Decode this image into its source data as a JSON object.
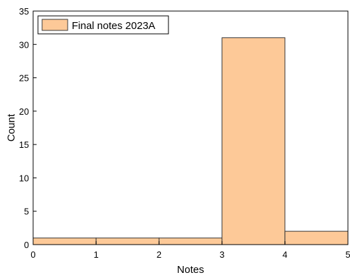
{
  "chart_data": {
    "type": "bar",
    "subtype": "histogram",
    "bins": [
      {
        "x0": 0,
        "x1": 1,
        "count": 1
      },
      {
        "x0": 1,
        "x1": 2,
        "count": 1
      },
      {
        "x0": 2,
        "x1": 3,
        "count": 1
      },
      {
        "x0": 3,
        "x1": 4,
        "count": 31
      },
      {
        "x0": 4,
        "x1": 5,
        "count": 2
      }
    ],
    "series": [
      {
        "name": "Final notes 2023A"
      }
    ],
    "xlabel": "Notes",
    "ylabel": "Count",
    "xlim": [
      0,
      5
    ],
    "ylim": [
      0,
      35
    ],
    "xticks": [
      "0",
      "1",
      "2",
      "3",
      "4",
      "5"
    ],
    "yticks": [
      "0",
      "5",
      "10",
      "15",
      "20",
      "25",
      "30",
      "35"
    ],
    "grid": false,
    "legend_position": "top-left",
    "bar_color": "#fdc998",
    "edge_color": "#3a3a3a"
  }
}
